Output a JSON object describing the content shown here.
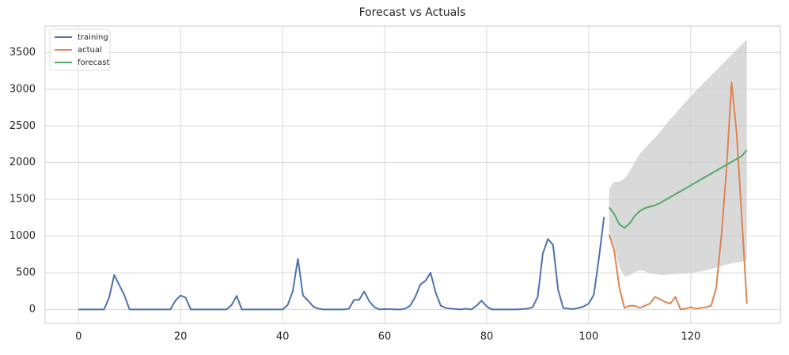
{
  "chart_data": {
    "type": "line",
    "title": "Forecast vs Actuals",
    "xlim": [
      -6.55,
      137.55
    ],
    "ylim": [
      -190,
      3860
    ],
    "xticks": [
      0,
      20,
      40,
      60,
      80,
      100,
      120
    ],
    "yticks": [
      0,
      500,
      1000,
      1500,
      2000,
      2500,
      3000,
      3500
    ],
    "grid": true,
    "legend": "upper-left",
    "series": [
      {
        "name": "training",
        "color": "#4c72b0",
        "x": [
          0,
          1,
          2,
          3,
          4,
          5,
          6,
          7,
          8,
          9,
          10,
          11,
          12,
          13,
          14,
          15,
          16,
          17,
          18,
          19,
          20,
          21,
          22,
          23,
          24,
          25,
          26,
          27,
          28,
          29,
          30,
          31,
          32,
          33,
          34,
          35,
          36,
          37,
          38,
          39,
          40,
          41,
          42,
          43,
          44,
          45,
          46,
          47,
          48,
          49,
          50,
          51,
          52,
          53,
          54,
          55,
          56,
          57,
          58,
          59,
          60,
          61,
          62,
          63,
          64,
          65,
          66,
          67,
          68,
          69,
          70,
          71,
          72,
          73,
          74,
          75,
          76,
          77,
          78,
          79,
          80,
          81,
          82,
          83,
          84,
          85,
          86,
          87,
          88,
          89,
          90,
          91,
          92,
          93,
          94,
          95,
          96,
          97,
          98,
          99,
          100,
          101,
          102,
          103
        ],
        "values": [
          0,
          0,
          0,
          0,
          0,
          0,
          160,
          470,
          330,
          190,
          0,
          0,
          0,
          0,
          0,
          0,
          0,
          0,
          0,
          120,
          190,
          160,
          0,
          0,
          0,
          0,
          0,
          0,
          0,
          0,
          60,
          185,
          0,
          0,
          0,
          0,
          0,
          0,
          0,
          0,
          0,
          60,
          250,
          690,
          190,
          120,
          40,
          10,
          0,
          0,
          0,
          0,
          0,
          10,
          130,
          130,
          245,
          110,
          30,
          0,
          5,
          5,
          0,
          0,
          10,
          50,
          170,
          340,
          390,
          500,
          230,
          50,
          20,
          10,
          5,
          0,
          10,
          0,
          50,
          120,
          40,
          0,
          0,
          0,
          0,
          0,
          0,
          5,
          10,
          30,
          170,
          760,
          960,
          880,
          270,
          20,
          10,
          5,
          20,
          40,
          80,
          200,
          700,
          1260
        ]
      },
      {
        "name": "actual",
        "color": "#dd8452",
        "x": [
          104,
          105,
          106,
          107,
          108,
          109,
          110,
          111,
          112,
          113,
          114,
          115,
          116,
          117,
          118,
          119,
          120,
          121,
          122,
          123,
          124,
          125,
          126,
          127,
          128,
          129,
          130,
          131
        ],
        "values": [
          1020,
          800,
          300,
          20,
          50,
          50,
          20,
          50,
          80,
          170,
          140,
          100,
          80,
          170,
          0,
          10,
          30,
          10,
          20,
          30,
          50,
          300,
          1000,
          1900,
          3090,
          2400,
          1250,
          80
        ]
      },
      {
        "name": "forecast",
        "color": "#55a868",
        "x": [
          104,
          105,
          106,
          107,
          108,
          109,
          110,
          111,
          112,
          113,
          114,
          115,
          116,
          117,
          118,
          119,
          120,
          121,
          122,
          123,
          124,
          125,
          126,
          127,
          128,
          129,
          130,
          131
        ],
        "values": [
          1390,
          1300,
          1160,
          1110,
          1170,
          1270,
          1340,
          1380,
          1400,
          1420,
          1450,
          1490,
          1530,
          1570,
          1610,
          1650,
          1690,
          1730,
          1770,
          1810,
          1850,
          1890,
          1930,
          1970,
          2010,
          2050,
          2090,
          2170
        ]
      }
    ],
    "band": {
      "color": "#cccccc",
      "x": [
        104,
        105,
        106,
        107,
        108,
        109,
        110,
        111,
        112,
        113,
        114,
        115,
        116,
        117,
        118,
        119,
        120,
        121,
        122,
        123,
        124,
        125,
        126,
        127,
        128,
        129,
        130,
        131
      ],
      "upper": [
        1650,
        1740,
        1740,
        1780,
        1880,
        2000,
        2120,
        2200,
        2270,
        2340,
        2420,
        2510,
        2590,
        2670,
        2750,
        2830,
        2900,
        2980,
        3050,
        3120,
        3190,
        3260,
        3330,
        3400,
        3470,
        3540,
        3610,
        3680
      ],
      "lower": [
        1050,
        850,
        580,
        450,
        460,
        510,
        530,
        520,
        490,
        480,
        470,
        470,
        480,
        480,
        490,
        490,
        500,
        510,
        520,
        530,
        550,
        570,
        590,
        610,
        630,
        640,
        650,
        670
      ]
    }
  }
}
